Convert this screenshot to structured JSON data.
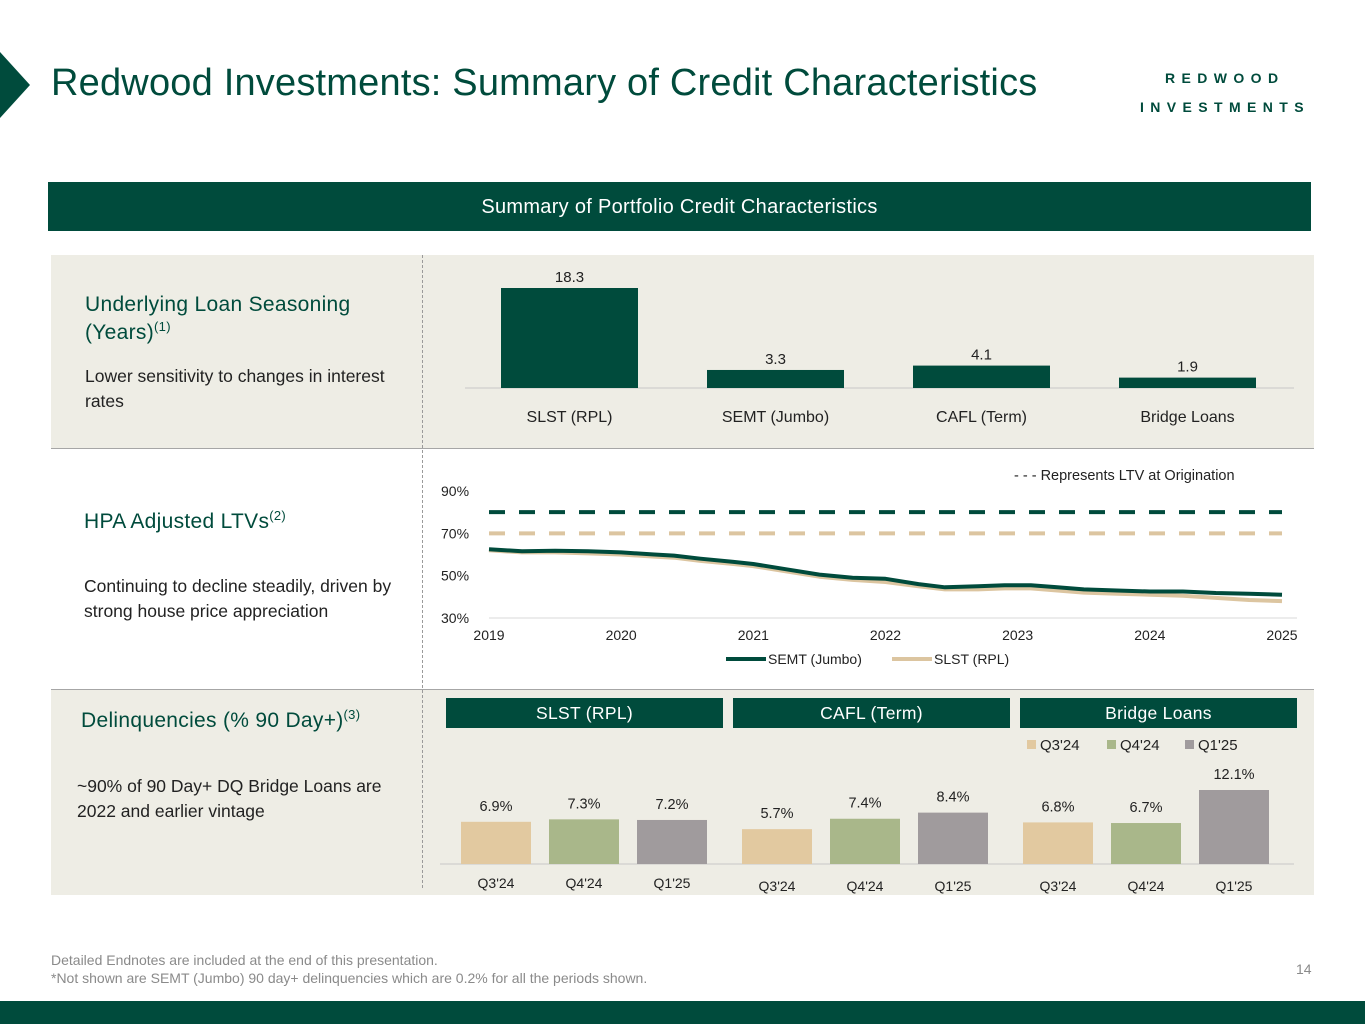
{
  "header": {
    "title": "Redwood Investments: Summary of Credit Characteristics",
    "logo_line1": "REDWOOD",
    "logo_line2": "INVESTMENTS"
  },
  "banner": "Summary of Portfolio Credit Characteristics",
  "seasoning": {
    "heading": "Underlying Loan Seasoning (Years)",
    "footnote": "(1)",
    "description": "Lower sensitivity to changes in interest rates"
  },
  "ltv": {
    "heading": "HPA Adjusted LTVs",
    "footnote": "(2)",
    "description": "Continuing to decline steadily, driven by strong house price appreciation"
  },
  "delinq": {
    "heading": "Delinquencies (% 90 Day+)",
    "footnote": "(3)",
    "description": "~90% of 90 Day+ DQ Bridge Loans are 2022 and earlier vintage",
    "groups": [
      "SLST (RPL)",
      "CAFL (Term)",
      "Bridge Loans"
    ]
  },
  "footer": {
    "line1": "Detailed Endnotes are included at the end of this presentation.",
    "line2": "*Not shown are SEMT (Jumbo) 90 day+ delinquencies which are 0.2% for all the periods shown.",
    "page": "14"
  },
  "colors": {
    "brand": "#004b3c",
    "panel": "#eeede5",
    "q3": "#e2c9a0",
    "q4": "#a9b78a",
    "q1": "#a09b9d",
    "slst_line": "#dcc5a0"
  },
  "chart_data": [
    {
      "type": "bar",
      "categories": [
        "SLST (RPL)",
        "SEMT (Jumbo)",
        "CAFL (Term)",
        "Bridge Loans"
      ],
      "values": [
        18.3,
        3.3,
        4.1,
        1.9
      ],
      "labels": [
        "18.3",
        "3.3",
        "4.1",
        "1.9"
      ],
      "ylim": [
        0,
        18.3
      ]
    },
    {
      "type": "line",
      "x_ticks": [
        "2019",
        "2020",
        "2021",
        "2022",
        "2023",
        "2024",
        "2025"
      ],
      "y_ticks": [
        "30%",
        "50%",
        "70%",
        "90%"
      ],
      "ylim": [
        30,
        90
      ],
      "annotation": "- - - Represents LTV at Origination",
      "series": [
        {
          "name": "SEMT (Jumbo)",
          "color": "#004b3c",
          "origination": 80,
          "points": [
            [
              2019.0,
              62.5
            ],
            [
              2019.25,
              61.5
            ],
            [
              2019.5,
              61.8
            ],
            [
              2019.75,
              61.5
            ],
            [
              2020.0,
              61.0
            ],
            [
              2020.25,
              60.0
            ],
            [
              2020.4,
              59.5
            ],
            [
              2020.6,
              58.0
            ],
            [
              2020.85,
              56.5
            ],
            [
              2021.0,
              55.5
            ],
            [
              2021.25,
              53.0
            ],
            [
              2021.5,
              50.5
            ],
            [
              2021.75,
              49.0
            ],
            [
              2022.0,
              48.5
            ],
            [
              2022.25,
              46.0
            ],
            [
              2022.45,
              44.5
            ],
            [
              2022.7,
              45.0
            ],
            [
              2022.9,
              45.5
            ],
            [
              2023.1,
              45.5
            ],
            [
              2023.3,
              44.5
            ],
            [
              2023.5,
              43.5
            ],
            [
              2023.75,
              43.0
            ],
            [
              2024.0,
              42.5
            ],
            [
              2024.25,
              42.5
            ],
            [
              2024.5,
              41.8
            ],
            [
              2024.75,
              41.5
            ],
            [
              2025.0,
              41.0
            ]
          ]
        },
        {
          "name": "SLST (RPL)",
          "color": "#dcc5a0",
          "origination": 70,
          "points": [
            [
              2019.0,
              62.0
            ],
            [
              2019.25,
              61.0
            ],
            [
              2019.5,
              61.0
            ],
            [
              2019.75,
              60.5
            ],
            [
              2020.0,
              60.0
            ],
            [
              2020.25,
              59.0
            ],
            [
              2020.4,
              58.5
            ],
            [
              2020.6,
              57.0
            ],
            [
              2020.85,
              55.5
            ],
            [
              2021.0,
              54.5
            ],
            [
              2021.25,
              52.0
            ],
            [
              2021.5,
              49.5
            ],
            [
              2021.75,
              48.0
            ],
            [
              2022.0,
              47.0
            ],
            [
              2022.25,
              45.0
            ],
            [
              2022.45,
              43.5
            ],
            [
              2022.7,
              43.5
            ],
            [
              2022.9,
              44.0
            ],
            [
              2023.1,
              44.0
            ],
            [
              2023.3,
              43.0
            ],
            [
              2023.5,
              42.0
            ],
            [
              2023.75,
              41.5
            ],
            [
              2024.0,
              41.0
            ],
            [
              2024.25,
              40.5
            ],
            [
              2024.5,
              39.5
            ],
            [
              2024.75,
              38.5
            ],
            [
              2025.0,
              38.0
            ]
          ]
        }
      ]
    },
    {
      "type": "bar",
      "legend": [
        "Q3'24",
        "Q4'24",
        "Q1'25"
      ],
      "groups": [
        {
          "name": "SLST (RPL)",
          "categories": [
            "Q3'24",
            "Q4'24",
            "Q1'25"
          ],
          "values": [
            6.9,
            7.3,
            7.2
          ],
          "labels": [
            "6.9%",
            "7.3%",
            "7.2%"
          ]
        },
        {
          "name": "CAFL (Term)",
          "categories": [
            "Q3'24",
            "Q4'24",
            "Q1'25"
          ],
          "values": [
            5.7,
            7.4,
            8.4
          ],
          "labels": [
            "5.7%",
            "7.4%",
            "8.4%"
          ]
        },
        {
          "name": "Bridge Loans",
          "categories": [
            "Q3'24",
            "Q4'24",
            "Q1'25"
          ],
          "values": [
            6.8,
            6.7,
            12.1
          ],
          "labels": [
            "6.8%",
            "6.7%",
            "12.1%"
          ]
        }
      ],
      "ylim": [
        0,
        12.1
      ]
    }
  ]
}
